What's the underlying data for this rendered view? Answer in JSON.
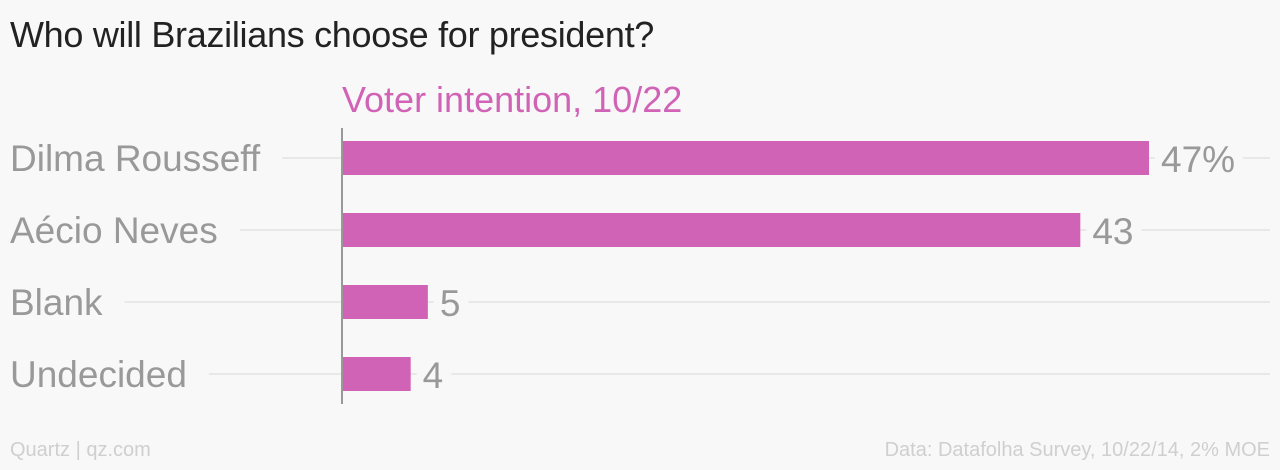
{
  "title": "Who will Brazilians choose for president?",
  "footer": {
    "source_left": "Quartz | qz.com",
    "source_right": "Data: Datafolha Survey, 10/22/14, 2% MOE"
  },
  "chart_data": {
    "type": "bar",
    "orientation": "horizontal",
    "series": [
      {
        "name": "Voter intention, 10/22",
        "color": "#d163b7",
        "values": [
          47,
          43,
          5,
          4
        ],
        "labels": [
          "47%",
          "43",
          "5",
          "4"
        ]
      }
    ],
    "categories": [
      "Dilma Rousseff",
      "Aécio Neves",
      "Blank",
      "Undecided"
    ],
    "xlim": [
      0,
      50
    ],
    "grid": true,
    "legend": "top"
  }
}
